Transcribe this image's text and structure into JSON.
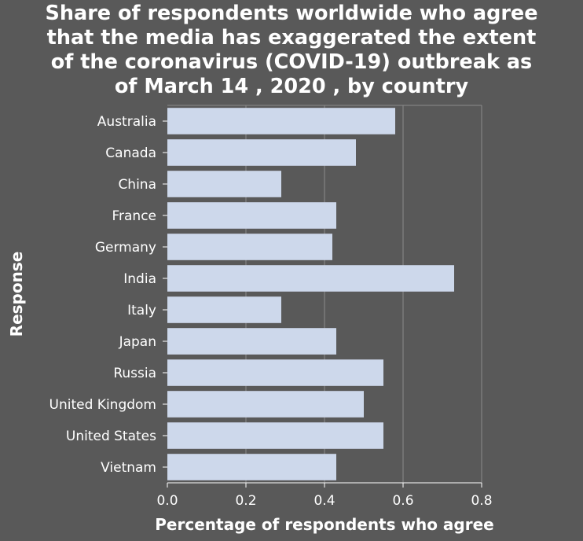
{
  "chart_data": {
    "type": "bar",
    "orientation": "horizontal",
    "title": "Share of respondents worldwide who agree\nthat the media has exaggerated the extent\nof the coronavirus (COVID-19) outbreak as\nof March 14 , 2020 , by country",
    "xlabel": "Percentage of respondents who agree",
    "ylabel": "Response",
    "categories": [
      "Australia",
      "Canada",
      "China",
      "France",
      "Germany",
      "India",
      "Italy",
      "Japan",
      "Russia",
      "United Kingdom",
      "United States",
      "Vietnam"
    ],
    "values": [
      0.58,
      0.48,
      0.29,
      0.43,
      0.42,
      0.73,
      0.29,
      0.43,
      0.55,
      0.5,
      0.55,
      0.43
    ],
    "xlim": [
      0,
      0.8
    ],
    "xticks": [
      0.0,
      0.2,
      0.4,
      0.6,
      0.8
    ],
    "xtick_labels": [
      "0.0",
      "0.2",
      "0.4",
      "0.6",
      "0.8"
    ],
    "grid": true,
    "legend": "none",
    "colors": {
      "background": "#595959",
      "bar": "#cdd8eb",
      "grid": "#8a8a8a",
      "text": "#ffffff"
    }
  }
}
